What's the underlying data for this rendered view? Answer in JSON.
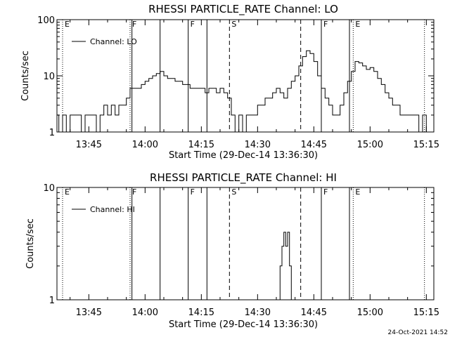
{
  "timestamp": "24-Oct-2021 14:52",
  "chart_data": [
    {
      "type": "line",
      "title": "RHESSI PARTICLE_RATE Channel: LO",
      "xlabel": "Start Time (29-Dec-14 13:36:30)",
      "ylabel": "Counts/sec",
      "y_scale": "log",
      "ylim": [
        1,
        100
      ],
      "yticks": [
        {
          "value": 1,
          "label": "1"
        },
        {
          "value": 10,
          "label": "10"
        },
        {
          "value": 100,
          "label": "100"
        }
      ],
      "xlim": [
        "13:36:30",
        "15:17:00"
      ],
      "xticks": [
        "13:45",
        "14:00",
        "14:15",
        "14:30",
        "14:45",
        "15:00",
        "15:15"
      ],
      "legend": {
        "position": "top-left",
        "entries": [
          "Channel: LO"
        ]
      },
      "event_markers": [
        {
          "time": "13:38:00",
          "label": "E",
          "style": "dotted"
        },
        {
          "time": "13:56:00",
          "label": "F",
          "style": "dotted"
        },
        {
          "time": "13:56:30",
          "label": "",
          "style": "solid"
        },
        {
          "time": "14:04:00",
          "label": "",
          "style": "solid"
        },
        {
          "time": "14:11:30",
          "label": "F",
          "style": "solid"
        },
        {
          "time": "14:16:30",
          "label": "",
          "style": "solid"
        },
        {
          "time": "14:22:30",
          "label": "S",
          "style": "dashed"
        },
        {
          "time": "14:41:30",
          "label": "",
          "style": "dashed"
        },
        {
          "time": "14:47:00",
          "label": "F",
          "style": "solid"
        },
        {
          "time": "14:54:30",
          "label": "",
          "style": "solid"
        },
        {
          "time": "14:55:30",
          "label": "E",
          "style": "dotted"
        },
        {
          "time": "15:14:30",
          "label": "",
          "style": "dotted"
        }
      ],
      "series": [
        {
          "name": "Channel: LO",
          "x": [
            "13:36:30",
            "13:37",
            "13:38",
            "13:39",
            "13:40",
            "13:41",
            "13:42",
            "13:43",
            "13:44",
            "13:45",
            "13:46",
            "13:47",
            "13:48",
            "13:49",
            "13:50",
            "13:51",
            "13:52",
            "13:53",
            "13:54",
            "13:55",
            "13:56",
            "13:57",
            "13:58",
            "13:59",
            "14:00",
            "14:01",
            "14:02",
            "14:03",
            "14:04",
            "14:05",
            "14:06",
            "14:07",
            "14:08",
            "14:09",
            "14:10",
            "14:11",
            "14:12",
            "14:13",
            "14:14",
            "14:15",
            "14:16",
            "14:17",
            "14:18",
            "14:19",
            "14:20",
            "14:21",
            "14:22",
            "14:23",
            "14:24",
            "14:25",
            "14:26",
            "14:27",
            "14:28",
            "14:29",
            "14:30",
            "14:31",
            "14:32",
            "14:33",
            "14:34",
            "14:35",
            "14:36",
            "14:37",
            "14:38",
            "14:39",
            "14:40",
            "14:41",
            "14:42",
            "14:43",
            "14:44",
            "14:45",
            "14:46",
            "14:47",
            "14:48",
            "14:49",
            "14:50",
            "14:51",
            "14:52",
            "14:53",
            "14:54",
            "14:55",
            "14:56",
            "14:57",
            "14:58",
            "14:59",
            "15:00",
            "15:01",
            "15:02",
            "15:03",
            "15:04",
            "15:05",
            "15:06",
            "15:07",
            "15:08",
            "15:09",
            "15:10",
            "15:11",
            "15:12",
            "15:13",
            "15:14",
            "15:15"
          ],
          "y": [
            2,
            1,
            2,
            1,
            2,
            2,
            2,
            1,
            2,
            2,
            2,
            1,
            2,
            3,
            2,
            3,
            2,
            3,
            3,
            4,
            6,
            6,
            6,
            7,
            8,
            9,
            10,
            11,
            12,
            10,
            9,
            9,
            8,
            8,
            7,
            7,
            6,
            6,
            6,
            6,
            5,
            6,
            6,
            5,
            6,
            5,
            4,
            2,
            1,
            2,
            1,
            2,
            2,
            2,
            3,
            3,
            4,
            4,
            5,
            6,
            5,
            4,
            6,
            8,
            10,
            15,
            22,
            28,
            25,
            18,
            10,
            6,
            4,
            3,
            2,
            2,
            3,
            5,
            8,
            12,
            18,
            17,
            15,
            13,
            14,
            12,
            9,
            7,
            5,
            4,
            3,
            3,
            2,
            2,
            2,
            2,
            2,
            1,
            2,
            1
          ]
        }
      ]
    },
    {
      "type": "line",
      "title": "RHESSI PARTICLE_RATE Channel: HI",
      "xlabel": "Start Time (29-Dec-14 13:36:30)",
      "ylabel": "Counts/sec",
      "y_scale": "log",
      "ylim": [
        1,
        10
      ],
      "yticks": [
        {
          "value": 1,
          "label": "1"
        },
        {
          "value": 10,
          "label": "10"
        }
      ],
      "xlim": [
        "13:36:30",
        "15:17:00"
      ],
      "xticks": [
        "13:45",
        "14:00",
        "14:15",
        "14:30",
        "14:45",
        "15:00",
        "15:15"
      ],
      "legend": {
        "position": "top-left",
        "entries": [
          "Channel: HI"
        ]
      },
      "event_markers": [
        {
          "time": "13:38:00",
          "label": "E",
          "style": "dotted"
        },
        {
          "time": "13:56:00",
          "label": "F",
          "style": "dotted"
        },
        {
          "time": "13:56:30",
          "label": "",
          "style": "solid"
        },
        {
          "time": "14:04:00",
          "label": "",
          "style": "solid"
        },
        {
          "time": "14:11:30",
          "label": "F",
          "style": "solid"
        },
        {
          "time": "14:16:30",
          "label": "",
          "style": "solid"
        },
        {
          "time": "14:22:30",
          "label": "S",
          "style": "dashed"
        },
        {
          "time": "14:41:30",
          "label": "",
          "style": "dashed"
        },
        {
          "time": "14:47:00",
          "label": "F",
          "style": "solid"
        },
        {
          "time": "14:54:30",
          "label": "",
          "style": "solid"
        },
        {
          "time": "14:55:30",
          "label": "E",
          "style": "dotted"
        },
        {
          "time": "15:14:30",
          "label": "",
          "style": "dotted"
        }
      ],
      "series": [
        {
          "name": "Channel: HI",
          "x": [
            "14:35:30",
            "14:36",
            "14:36:30",
            "14:37",
            "14:37:30",
            "14:38",
            "14:38:30",
            "14:39",
            "14:39:30"
          ],
          "y": [
            1,
            2,
            3,
            4,
            3,
            4,
            2,
            1,
            1
          ]
        }
      ]
    }
  ]
}
